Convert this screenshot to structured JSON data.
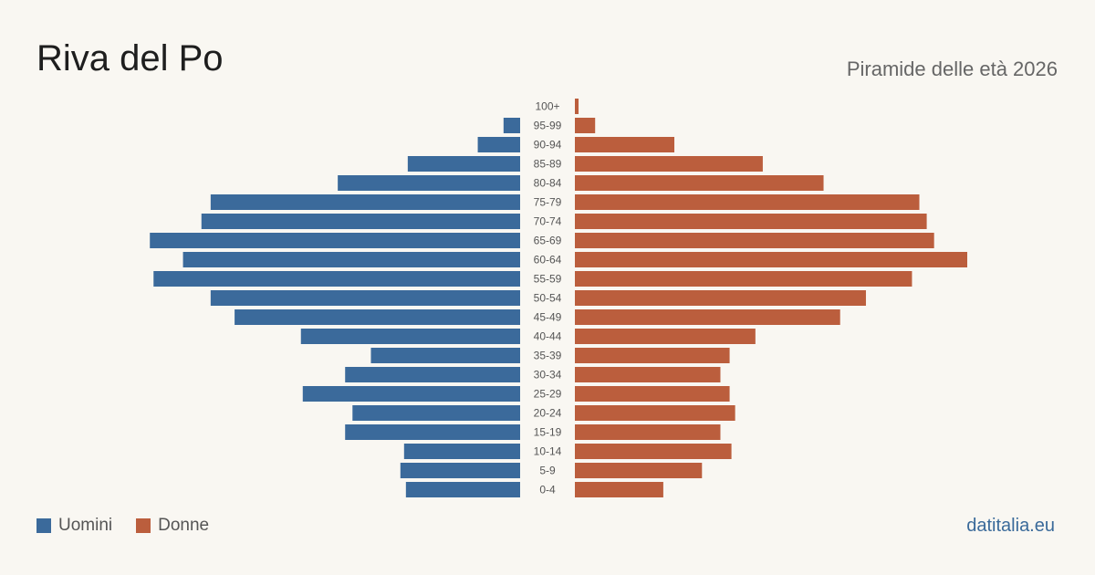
{
  "header": {
    "title": "Riva del Po",
    "subtitle": "Piramide delle età 2026"
  },
  "legend": {
    "men_label": "Uomini",
    "women_label": "Donne"
  },
  "source": "datitalia.eu",
  "colors": {
    "men": "#3b6a9b",
    "women": "#bb5e3d",
    "tick_text": "#555555"
  },
  "chart_data": {
    "type": "bar",
    "orientation": "horizontal-pyramid",
    "title": "Riva del Po",
    "subtitle": "Piramide delle età 2026",
    "xlabel": "",
    "ylabel": "",
    "grid": false,
    "legend_position": "bottom-left",
    "categories": [
      "100+",
      "95-99",
      "90-94",
      "85-89",
      "80-84",
      "75-79",
      "70-74",
      "65-69",
      "60-64",
      "55-59",
      "50-54",
      "45-49",
      "40-44",
      "35-39",
      "30-34",
      "25-29",
      "20-24",
      "15-19",
      "10-14",
      "5-9",
      "0-4"
    ],
    "series": [
      {
        "name": "Uomini",
        "values": [
          0,
          9,
          23,
          61,
          99,
          168,
          173,
          201,
          183,
          199,
          168,
          155,
          119,
          81,
          95,
          118,
          91,
          95,
          63,
          65,
          62
        ]
      },
      {
        "name": "Donne",
        "values": [
          2,
          11,
          54,
          102,
          135,
          187,
          191,
          195,
          213,
          183,
          158,
          144,
          98,
          84,
          79,
          84,
          87,
          79,
          85,
          69,
          48
        ]
      }
    ],
    "xlim": [
      0,
      213
    ]
  }
}
